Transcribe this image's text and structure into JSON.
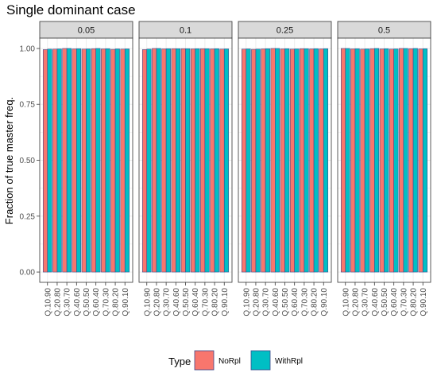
{
  "chart_data": {
    "type": "bar",
    "title": "Single dominant case",
    "ylabel": "Fraction of true master freq.",
    "xlabel": "",
    "ylim": [
      0,
      1.05
    ],
    "yticks": [
      "0.00",
      "0.25",
      "0.50",
      "0.75",
      "1.00"
    ],
    "ytick_values": [
      0,
      0.25,
      0.5,
      0.75,
      1.0
    ],
    "categories": [
      "Q.10.90",
      "Q.20.80",
      "Q.30.70",
      "Q.40.60",
      "Q.50.50",
      "Q.60.40",
      "Q.70.30",
      "Q.80.20",
      "Q.90.10"
    ],
    "legend": {
      "title": "Type",
      "placement": "bottom",
      "entries": [
        "NoRpl",
        "WithRpl"
      ]
    },
    "colors": {
      "NoRpl": "#F8766D",
      "WithRpl": "#00BFC4",
      "bar_outline": "#3b4a8c",
      "strip_fill": "#d9d9d9",
      "grid": "#ebebeb"
    },
    "grid": true,
    "facets": [
      {
        "label": "0.05",
        "series": [
          {
            "name": "NoRpl",
            "values": [
              0.995,
              0.997,
              1.0,
              0.998,
              0.997,
              0.999,
              0.998,
              0.996,
              0.997
            ]
          },
          {
            "name": "WithRpl",
            "values": [
              0.997,
              0.998,
              1.0,
              0.999,
              0.998,
              1.0,
              0.999,
              0.998,
              0.998
            ]
          }
        ]
      },
      {
        "label": "0.1",
        "series": [
          {
            "name": "NoRpl",
            "values": [
              0.995,
              1.0,
              0.998,
              0.999,
              0.999,
              0.998,
              0.999,
              0.998,
              0.997
            ]
          },
          {
            "name": "WithRpl",
            "values": [
              0.997,
              1.0,
              0.999,
              0.999,
              0.999,
              0.999,
              0.999,
              0.999,
              0.998
            ]
          }
        ]
      },
      {
        "label": "0.25",
        "series": [
          {
            "name": "NoRpl",
            "values": [
              0.997,
              0.996,
              0.998,
              1.0,
              0.998,
              0.997,
              0.999,
              0.998,
              0.998
            ]
          },
          {
            "name": "WithRpl",
            "values": [
              0.998,
              0.997,
              0.999,
              1.0,
              0.999,
              0.998,
              0.999,
              0.999,
              0.999
            ]
          }
        ]
      },
      {
        "label": "0.5",
        "series": [
          {
            "name": "NoRpl",
            "values": [
              1.0,
              0.998,
              0.997,
              0.999,
              0.998,
              0.997,
              1.0,
              0.999,
              0.998
            ]
          },
          {
            "name": "WithRpl",
            "values": [
              1.0,
              0.999,
              0.998,
              1.0,
              0.999,
              0.998,
              1.0,
              1.0,
              0.999
            ]
          }
        ]
      }
    ]
  }
}
